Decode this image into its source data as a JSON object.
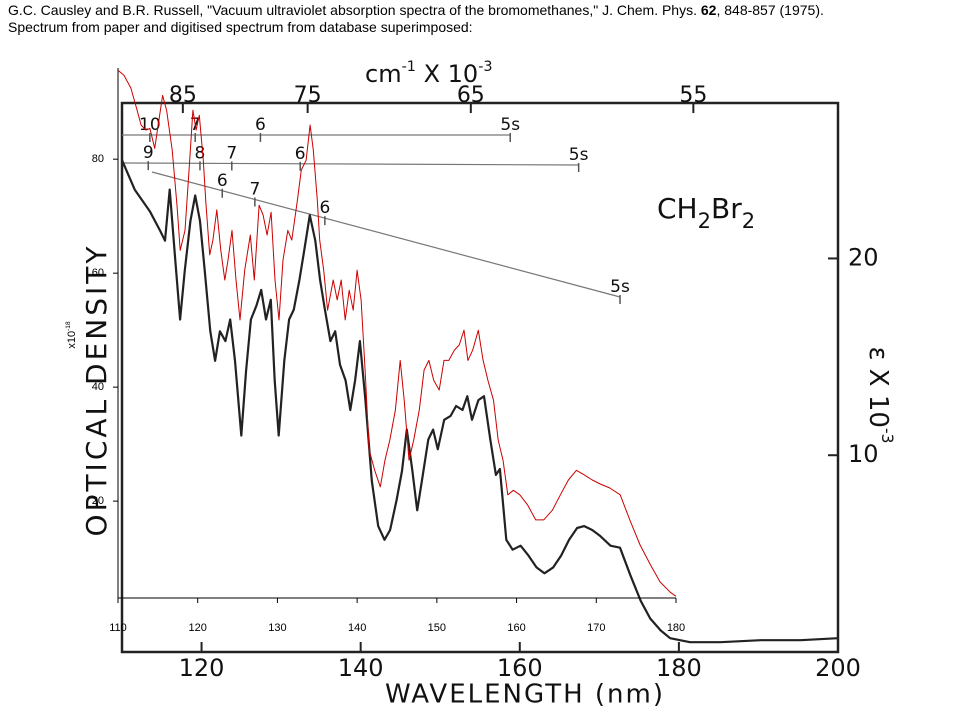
{
  "caption": {
    "line1_start": "G.C. Causley and B.R. Russell, \"Vacuum ultraviolet absorption spectra of the bromomethanes,\" J. Chem. Phys. ",
    "line1_bold": "62",
    "line1_end": ", 848-857 (1975).",
    "line2": "Spectrum from paper and digitised spectrum from database superimposed:"
  },
  "chart_data": [
    {
      "type": "line",
      "title": [
        "CH",
        "2",
        "Br",
        "2"
      ],
      "xlabel": "WAVELENGTH (nm)",
      "ylabel": "OPTICAL DENSITY",
      "x2label": [
        "cm",
        "-1",
        " X 10",
        "-3"
      ],
      "y2label": [
        "ε X 10",
        "-3"
      ],
      "xlim": [
        110,
        200
      ],
      "xticks": [
        120,
        140,
        160,
        180,
        200
      ],
      "x2ticks": [
        85,
        75,
        65,
        55
      ],
      "y2lim": [
        0,
        27.9
      ],
      "y2ticks": [
        10,
        20
      ],
      "rydberg": [
        {
          "labels": [
            "10",
            "7",
            "6",
            "5s"
          ],
          "x": [
            113.5,
            119.2,
            127.4,
            158.8
          ]
        },
        {
          "labels": [
            "9",
            "8",
            "7",
            "6",
            "5s"
          ],
          "x": [
            113.3,
            119.8,
            123.8,
            132.4,
            167.4
          ]
        },
        {
          "labels": [
            "6",
            "7",
            "6",
            "5s"
          ],
          "x": [
            122.6,
            126.7,
            135.5,
            172.6
          ]
        }
      ],
      "series": [
        {
          "color": "#222222",
          "axis": "y2",
          "x": [
            110,
            111.6,
            113.5,
            114.8,
            115.4,
            116,
            116.7,
            117.3,
            117.9,
            118.6,
            119.2,
            119.8,
            120.4,
            121.1,
            121.7,
            122.3,
            123,
            123.6,
            124.2,
            125,
            125.6,
            126.2,
            126.9,
            127.5,
            128.1,
            128.7,
            129.2,
            129.7,
            130.4,
            131,
            131.6,
            132.3,
            132.9,
            133.6,
            134.3,
            134.9,
            135.5,
            136.2,
            136.8,
            137.4,
            138.1,
            138.7,
            139.3,
            139.9,
            140.6,
            141.4,
            142.2,
            143,
            143.7,
            144.5,
            145.2,
            145.8,
            146.5,
            147.1,
            147.7,
            148.5,
            149.1,
            149.7,
            150.5,
            151.3,
            152,
            152.8,
            153.4,
            154,
            154.8,
            155.5,
            156.3,
            157,
            157.5,
            158.3,
            159.1,
            160.1,
            161.1,
            162.1,
            163.1,
            164.2,
            165.2,
            166.2,
            167.2,
            168.1,
            169.1,
            170.1,
            171.4,
            172.6,
            173.9,
            175.2,
            176.4,
            177.7,
            178.9,
            181.4,
            185.2,
            190.3,
            195.3,
            200
          ],
          "values": [
            25,
            23.5,
            22.4,
            21.4,
            20.9,
            23.5,
            19.9,
            16.9,
            19.4,
            21.9,
            23.2,
            21.9,
            19.4,
            16.3,
            14.8,
            16.3,
            15.8,
            16.9,
            14.8,
            11,
            14.3,
            16.9,
            17.6,
            18.4,
            16.9,
            17.9,
            13.8,
            11,
            14.8,
            16.9,
            17.4,
            18.9,
            20.4,
            22.2,
            20.9,
            18.9,
            17.4,
            15.8,
            16.3,
            14.6,
            13.8,
            12.3,
            13.8,
            15.8,
            12.8,
            8.7,
            6.4,
            5.7,
            6.2,
            7.7,
            9.2,
            11.3,
            9.2,
            7.2,
            8.7,
            10.8,
            11.3,
            10.3,
            11.8,
            12,
            12.5,
            12.3,
            13,
            11.8,
            12.8,
            13,
            10.8,
            9,
            9.3,
            5.7,
            5.2,
            5.4,
            4.9,
            4.3,
            4,
            4.3,
            4.9,
            5.7,
            6.3,
            6.4,
            6.2,
            5.9,
            5.4,
            5.3,
            3.9,
            2.6,
            1.7,
            1.1,
            0.7,
            0.5,
            0.5,
            0.6,
            0.6,
            0.7
          ]
        }
      ]
    },
    {
      "type": "line",
      "ylabel": [
        "x10",
        "-18"
      ],
      "xlim": [
        110,
        180
      ],
      "xticks": [
        110,
        120,
        130,
        140,
        150,
        160,
        170,
        180
      ],
      "ylim": [
        3,
        96
      ],
      "yticks": [
        20,
        40,
        60,
        80
      ],
      "series": [
        {
          "color": "#cc0000",
          "x": [
            110,
            110.75,
            111.6,
            112.4,
            112.9,
            113.5,
            114,
            114.6,
            115.6,
            116.1,
            116.8,
            117.4,
            117.8,
            118.4,
            119,
            119.4,
            119.8,
            120.2,
            120.7,
            121,
            121.5,
            121.9,
            122.4,
            122.9,
            123.4,
            123.8,
            124.3,
            124.8,
            125.3,
            125.9,
            126.6,
            127.1,
            127.7,
            128.2,
            128.7,
            129.2,
            129.7,
            130.2,
            130.7,
            131.3,
            131.8,
            132.5,
            133,
            133.6,
            134.1,
            134.5,
            135,
            135.3,
            135.8,
            136.3,
            137,
            137.5,
            138,
            138.5,
            139,
            139.5,
            140,
            140.5,
            141,
            141.5,
            142.2,
            142.9,
            143.5,
            144.1,
            144.8,
            145.4,
            145.9,
            146.5,
            147.1,
            147.8,
            148.4,
            149,
            149.6,
            150.3,
            150.9,
            151.5,
            152.2,
            152.8,
            153.4,
            153.9,
            154.5,
            155.2,
            155.8,
            156.4,
            157.1,
            157.7,
            158.3,
            158.9,
            159.6,
            160.4,
            161.4,
            162.4,
            163.4,
            164.5,
            165.5,
            166.5,
            167.5,
            168.5,
            169.5,
            170.5,
            171.7,
            173,
            174.2,
            175.5,
            176.8,
            178,
            179.3,
            180
          ],
          "values": [
            95.6,
            94.7,
            92.5,
            88.6,
            86,
            85.1,
            85.4,
            81.9,
            91.2,
            88.6,
            81.6,
            71.9,
            64,
            67.5,
            79.8,
            88.6,
            85.1,
            87.7,
            79.8,
            72.8,
            63.2,
            65.8,
            71.1,
            64,
            58.8,
            62.3,
            67.5,
            58.8,
            51.8,
            60.5,
            66.7,
            58.8,
            71.9,
            70.2,
            66.7,
            70.7,
            58.8,
            51.8,
            62.3,
            67.5,
            65.8,
            72.8,
            78.1,
            79.8,
            86,
            81.6,
            72.8,
            65.8,
            60.5,
            53.5,
            58.8,
            55.3,
            58.8,
            51.8,
            57,
            53.5,
            60.5,
            55.3,
            43,
            29,
            25.4,
            22.5,
            27.2,
            30.7,
            36,
            44.7,
            37.7,
            27.2,
            30.7,
            36,
            43,
            44.7,
            41.2,
            39.5,
            44.7,
            44.7,
            46.5,
            47.4,
            50,
            44.7,
            46.5,
            50,
            44.7,
            41.2,
            37.7,
            30.7,
            27.2,
            21.1,
            21.9,
            21.1,
            19.3,
            16.7,
            16.7,
            18.4,
            21.1,
            23.7,
            25.4,
            24.6,
            23.7,
            23,
            22.3,
            21.1,
            16.7,
            12.3,
            8.8,
            5.8,
            4,
            3.3
          ]
        }
      ]
    }
  ]
}
